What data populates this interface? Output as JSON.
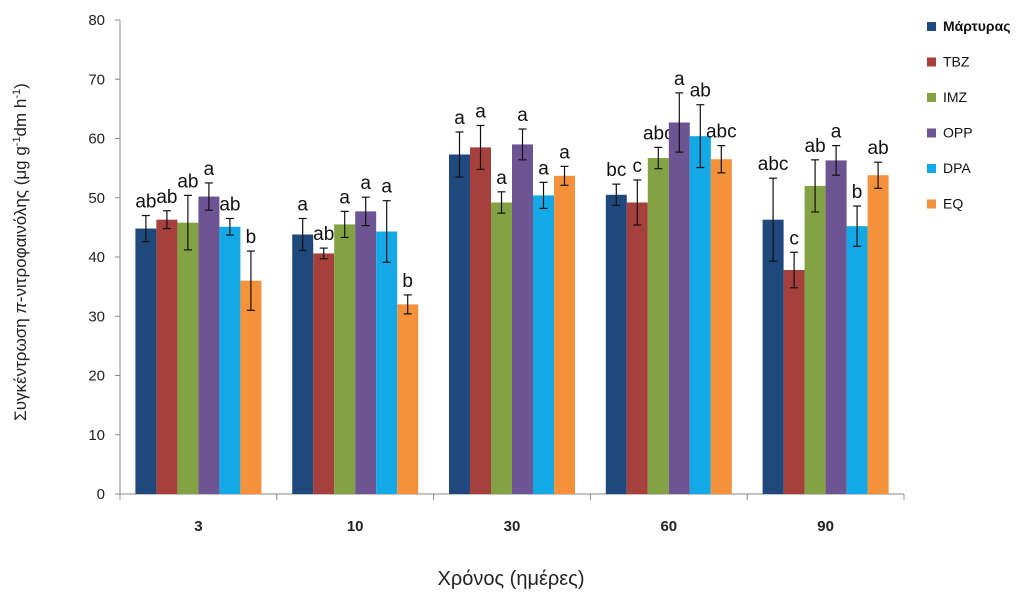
{
  "chart_data": {
    "type": "bar",
    "title": "",
    "xlabel": "Χρόνος (ημέρες)",
    "ylabel": {
      "pre": "Συγκέντρωση ",
      "pi": "π",
      "mid": "-νιτροφαινόλης (μg g",
      "sup1": "-1",
      "mid2": "dm h",
      "sup2": "-1",
      "post": ")"
    },
    "ylim": [
      0,
      80
    ],
    "yticks": [
      "0",
      "10",
      "20",
      "30",
      "40",
      "50",
      "60",
      "70",
      "80"
    ],
    "categories": [
      "3",
      "10",
      "30",
      "60",
      "90"
    ],
    "legend_position": "right",
    "grid": false,
    "series": [
      {
        "name": "Μάρτυρας",
        "color": "#1F497D",
        "bold": true,
        "values": [
          44.8,
          43.8,
          57.3,
          50.5,
          46.3
        ],
        "errors": [
          2.2,
          2.7,
          3.8,
          1.8,
          7.0
        ],
        "labels": [
          "ab",
          "a",
          "a",
          "bc",
          "abc"
        ]
      },
      {
        "name": "TBZ",
        "color": "#A5403D",
        "values": [
          46.3,
          40.6,
          58.5,
          49.2,
          37.8
        ],
        "errors": [
          1.5,
          0.9,
          3.7,
          3.8,
          3.0
        ],
        "labels": [
          "ab",
          "ab",
          "a",
          "c",
          "c"
        ]
      },
      {
        "name": "IMZ",
        "color": "#82A243",
        "values": [
          45.8,
          45.5,
          49.2,
          56.7,
          52.0
        ],
        "errors": [
          4.6,
          2.2,
          1.8,
          1.8,
          4.4
        ],
        "labels": [
          "ab",
          "a",
          "a",
          "abc",
          "ab"
        ]
      },
      {
        "name": "OPP",
        "color": "#6C5592",
        "values": [
          50.2,
          47.7,
          59.0,
          62.7,
          56.3
        ],
        "errors": [
          2.3,
          2.4,
          2.6,
          5.0,
          2.5
        ],
        "labels": [
          "a",
          "a",
          "a",
          "a",
          "a"
        ]
      },
      {
        "name": "DPA",
        "color": "#12A9E6",
        "values": [
          45.1,
          44.3,
          50.4,
          60.4,
          45.2
        ],
        "errors": [
          1.4,
          5.2,
          2.2,
          5.3,
          3.4
        ],
        "labels": [
          "ab",
          "a",
          "a",
          "ab",
          "b"
        ]
      },
      {
        "name": "EQ",
        "color": "#F5913A",
        "values": [
          36.0,
          32.0,
          53.7,
          56.5,
          53.8
        ],
        "errors": [
          5.0,
          1.6,
          1.6,
          2.3,
          2.2
        ],
        "labels": [
          "b",
          "b",
          "a",
          "abc",
          "ab"
        ]
      }
    ]
  }
}
